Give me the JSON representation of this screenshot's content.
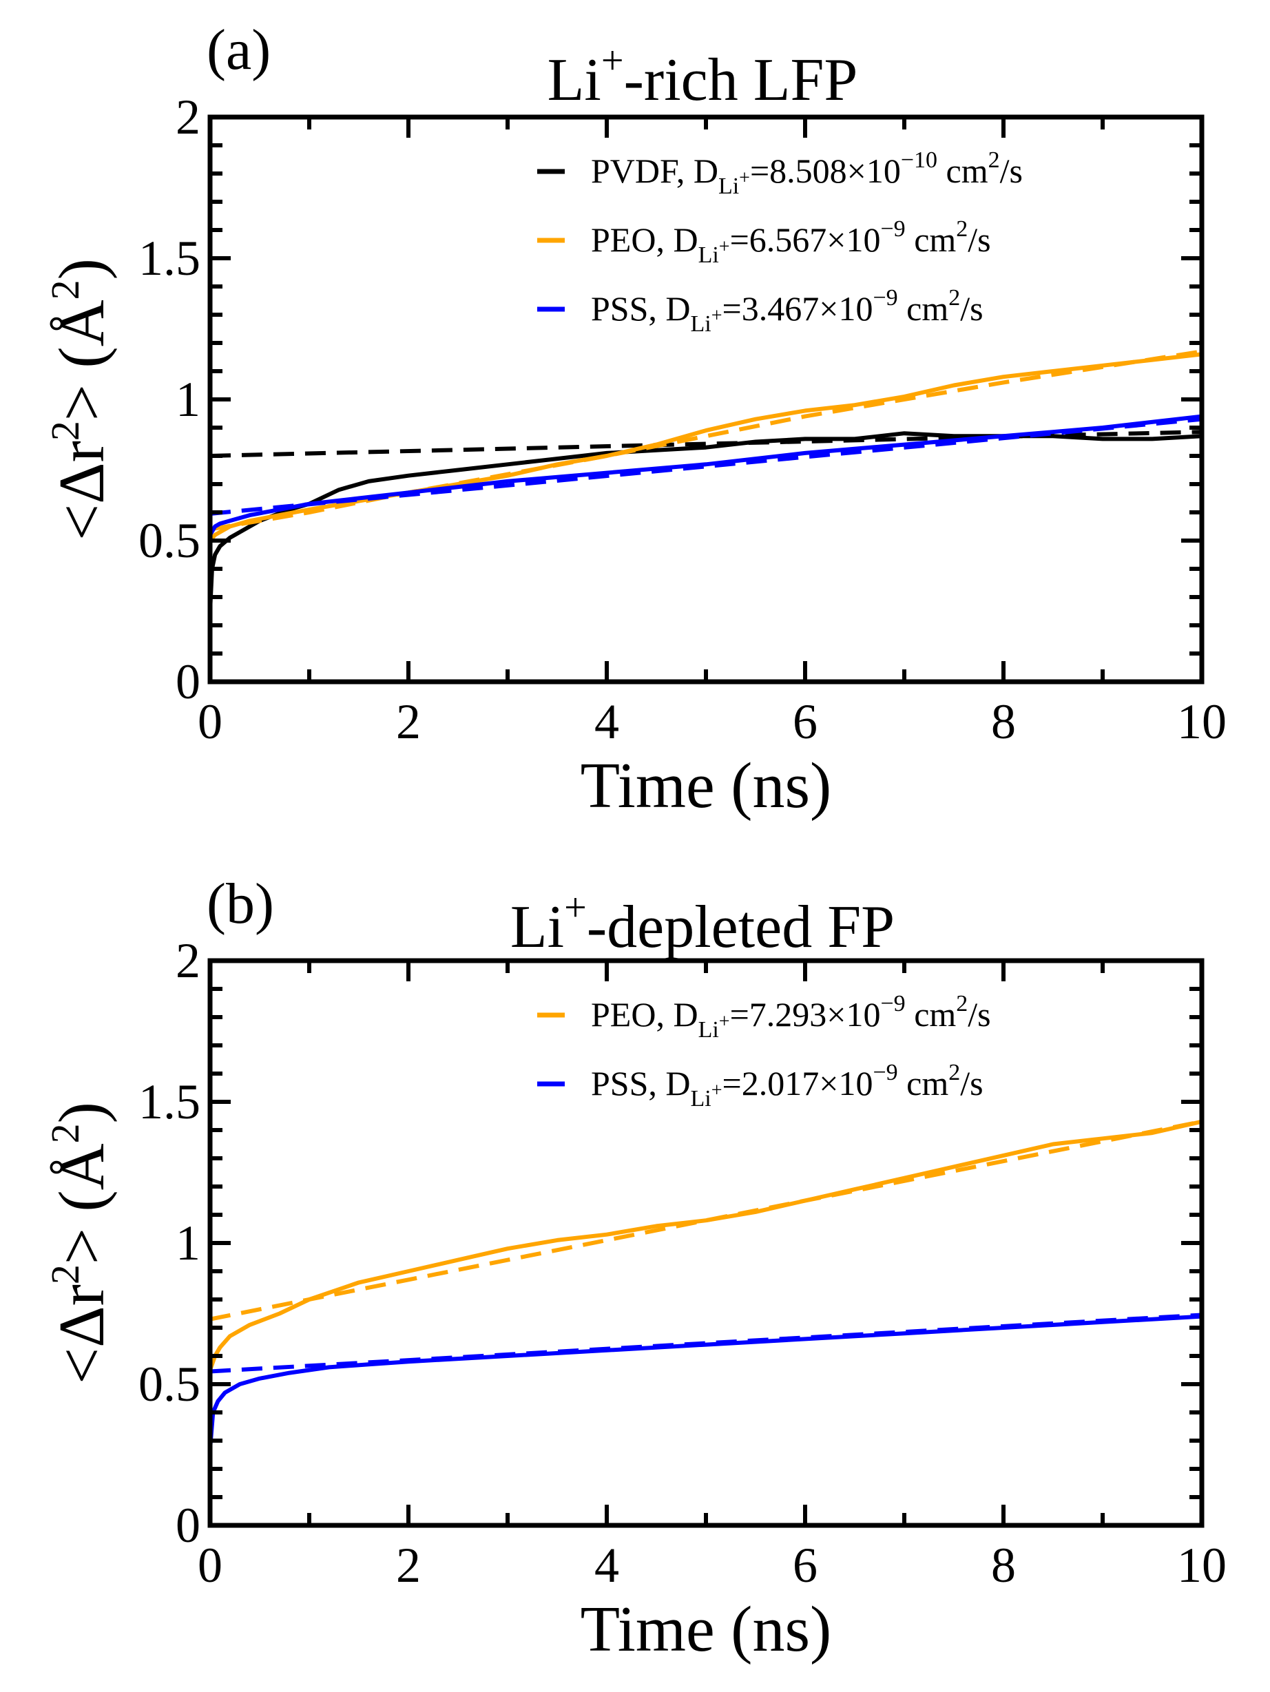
{
  "chart_data": [
    {
      "type": "line",
      "panel_label": "(a)",
      "title": "Li",
      "title_sup": "+",
      "title_rest": "-rich LFP",
      "xlabel": "Time (ns)",
      "ylabel": {
        "pre": "<Δr",
        "sup": "2",
        "mid": "> (Å",
        "sup2": "2",
        "post": ")"
      },
      "xlim": [
        0,
        10
      ],
      "ylim": [
        0,
        2
      ],
      "xticks": [
        "0",
        "2",
        "4",
        "6",
        "8",
        "10"
      ],
      "yticks": [
        "0",
        "0.5",
        "1",
        "1.5",
        "2"
      ],
      "legend_position": "top-right",
      "series": [
        {
          "name": "PVDF",
          "color": "#000000",
          "legend": {
            "pre": "PVDF, D",
            "sub": "Li",
            "subsup": "+",
            "mid": "=8.508×10",
            "exp": "−10",
            "post": " cm",
            "unitsup": "2",
            "tail": "/s"
          },
          "x": [
            0,
            0.02,
            0.05,
            0.1,
            0.2,
            0.3,
            0.5,
            0.8,
            1.0,
            1.3,
            1.6,
            2.0,
            2.5,
            3.0,
            3.5,
            4.0,
            4.5,
            5.0,
            5.5,
            6.0,
            6.5,
            7.0,
            7.5,
            8.0,
            8.5,
            9.0,
            9.5,
            10.0
          ],
          "y": [
            0.25,
            0.4,
            0.45,
            0.48,
            0.51,
            0.53,
            0.57,
            0.61,
            0.63,
            0.68,
            0.71,
            0.73,
            0.75,
            0.77,
            0.79,
            0.81,
            0.82,
            0.83,
            0.85,
            0.86,
            0.86,
            0.88,
            0.87,
            0.87,
            0.87,
            0.86,
            0.86,
            0.87
          ],
          "fit": {
            "x": [
              0,
              10
            ],
            "y": [
              0.8,
              0.885
            ]
          }
        },
        {
          "name": "PEO",
          "color": "#ffa500",
          "legend": {
            "pre": "PEO, D",
            "sub": "Li",
            "subsup": "+",
            "mid": "=6.567×10",
            "exp": "−9",
            "post": " cm",
            "unitsup": "2",
            "tail": "/s"
          },
          "x": [
            0,
            0.05,
            0.1,
            0.2,
            0.4,
            0.7,
            1.0,
            1.5,
            2.0,
            2.5,
            3.0,
            3.5,
            4.0,
            4.5,
            5.0,
            5.5,
            6.0,
            6.5,
            7.0,
            7.5,
            8.0,
            8.5,
            9.0,
            9.5,
            10.0
          ],
          "y": [
            0.5,
            0.52,
            0.53,
            0.55,
            0.57,
            0.59,
            0.61,
            0.64,
            0.67,
            0.7,
            0.73,
            0.77,
            0.8,
            0.84,
            0.89,
            0.93,
            0.96,
            0.98,
            1.01,
            1.05,
            1.08,
            1.1,
            1.12,
            1.14,
            1.16
          ],
          "fit": {
            "x": [
              0,
              1.0,
              2.0,
              4.0,
              6.0,
              8.0,
              10.0
            ],
            "y": [
              0.54,
              0.6,
              0.67,
              0.8,
              0.94,
              1.06,
              1.17
            ]
          }
        },
        {
          "name": "PSS",
          "color": "#0000ff",
          "legend": {
            "pre": "PSS, D",
            "sub": "Li",
            "subsup": "+",
            "mid": "=3.467×10",
            "exp": "−9",
            "post": " cm",
            "unitsup": "2",
            "tail": "/s"
          },
          "x": [
            0,
            0.05,
            0.1,
            0.2,
            0.4,
            0.7,
            1.0,
            1.5,
            2.0,
            2.5,
            3.0,
            4.0,
            5.0,
            6.0,
            7.0,
            8.0,
            9.0,
            10.0
          ],
          "y": [
            0.52,
            0.55,
            0.56,
            0.57,
            0.59,
            0.61,
            0.63,
            0.65,
            0.67,
            0.69,
            0.71,
            0.74,
            0.77,
            0.81,
            0.84,
            0.87,
            0.9,
            0.94
          ],
          "fit": {
            "x": [
              0,
              10
            ],
            "y": [
              0.595,
              0.93
            ]
          }
        }
      ]
    },
    {
      "type": "line",
      "panel_label": "(b)",
      "title": "Li",
      "title_sup": "+",
      "title_rest": "-depleted FP",
      "xlabel": "Time (ns)",
      "ylabel": {
        "pre": "<Δr",
        "sup": "2",
        "mid": "> (Å",
        "sup2": "2",
        "post": ")"
      },
      "xlim": [
        0,
        10
      ],
      "ylim": [
        0,
        2
      ],
      "xticks": [
        "0",
        "2",
        "4",
        "6",
        "8",
        "10"
      ],
      "yticks": [
        "0",
        "0.5",
        "1",
        "1.5",
        "2"
      ],
      "legend_position": "top-right",
      "series": [
        {
          "name": "PEO",
          "color": "#ffa500",
          "legend": {
            "pre": "PEO, D",
            "sub": "Li",
            "subsup": "+",
            "mid": "=7.293×10",
            "exp": "−9",
            "post": " cm",
            "unitsup": "2",
            "tail": "/s"
          },
          "x": [
            0,
            0.05,
            0.1,
            0.2,
            0.4,
            0.7,
            1.0,
            1.5,
            2.0,
            2.5,
            3.0,
            3.5,
            4.0,
            4.5,
            5.0,
            5.5,
            6.0,
            6.5,
            7.0,
            7.5,
            8.0,
            8.5,
            9.0,
            9.5,
            10.0
          ],
          "y": [
            0.55,
            0.6,
            0.63,
            0.67,
            0.71,
            0.75,
            0.8,
            0.86,
            0.9,
            0.94,
            0.98,
            1.01,
            1.03,
            1.06,
            1.08,
            1.11,
            1.15,
            1.19,
            1.23,
            1.27,
            1.31,
            1.35,
            1.37,
            1.39,
            1.43
          ],
          "fit": {
            "x": [
              0,
              10
            ],
            "y": [
              0.73,
              1.43
            ]
          }
        },
        {
          "name": "PSS",
          "color": "#0000ff",
          "legend": {
            "pre": "PSS, D",
            "sub": "Li",
            "subsup": "+",
            "mid": "=2.017×10",
            "exp": "−9",
            "post": " cm",
            "unitsup": "2",
            "tail": "/s"
          },
          "x": [
            0,
            0.03,
            0.08,
            0.15,
            0.3,
            0.5,
            0.8,
            1.2,
            1.6,
            2.0,
            3.0,
            4.0,
            5.0,
            6.0,
            7.0,
            8.0,
            9.0,
            10.0
          ],
          "y": [
            0.27,
            0.4,
            0.44,
            0.47,
            0.5,
            0.52,
            0.54,
            0.56,
            0.57,
            0.58,
            0.6,
            0.62,
            0.64,
            0.66,
            0.68,
            0.7,
            0.72,
            0.74
          ],
          "fit": {
            "x": [
              0,
              10
            ],
            "y": [
              0.545,
              0.745
            ]
          }
        }
      ]
    }
  ]
}
